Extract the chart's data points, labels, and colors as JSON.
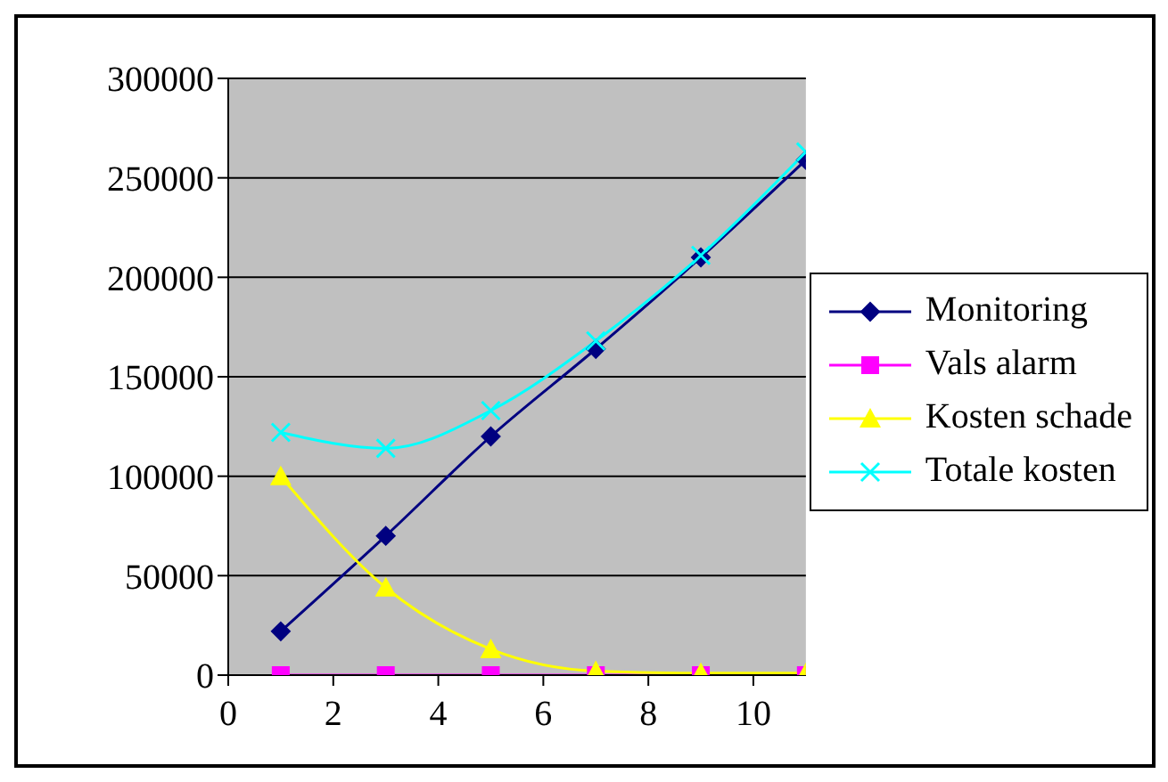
{
  "chart_data": {
    "type": "line",
    "x": [
      1,
      3,
      5,
      7,
      9,
      11
    ],
    "series": [
      {
        "name": "Monitoring",
        "color": "#000080",
        "marker": "diamond",
        "values": [
          22000,
          70000,
          120000,
          164000,
          210000,
          259000
        ]
      },
      {
        "name": "Vals alarm",
        "color": "#ff00ff",
        "marker": "square",
        "values": [
          0,
          0,
          0,
          0,
          0,
          0
        ]
      },
      {
        "name": "Kosten schade",
        "color": "#ffff00",
        "marker": "triangle",
        "values": [
          100000,
          44000,
          13000,
          2000,
          1000,
          1000
        ]
      },
      {
        "name": "Totale kosten",
        "color": "#00ffff",
        "marker": "cross",
        "values": [
          122000,
          114000,
          133000,
          168000,
          211000,
          263000
        ]
      }
    ],
    "xlim": [
      0,
      11
    ],
    "xticks": [
      0,
      2,
      4,
      6,
      8,
      10
    ],
    "ylim": [
      0,
      300000
    ],
    "yticks": [
      0,
      50000,
      100000,
      150000,
      200000,
      250000,
      300000
    ],
    "grid": "y",
    "legend": "right"
  }
}
